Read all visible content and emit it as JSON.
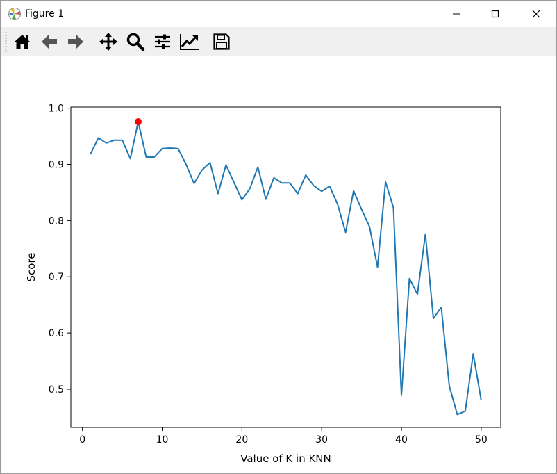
{
  "window": {
    "title": "Figure 1",
    "icons": {
      "app": "matplotlib-icon",
      "minimize": "minimize-icon",
      "maximize": "maximize-icon",
      "close": "close-icon"
    }
  },
  "toolbar": {
    "tools": [
      {
        "name": "home",
        "icon": "home-icon"
      },
      {
        "name": "back",
        "icon": "arrow-left-icon"
      },
      {
        "name": "forward",
        "icon": "arrow-right-icon"
      },
      {
        "name": "pan",
        "icon": "move-icon"
      },
      {
        "name": "zoom",
        "icon": "magnifier-icon"
      },
      {
        "name": "configure-subplots",
        "icon": "sliders-icon"
      },
      {
        "name": "edit-axis",
        "icon": "line-chart-icon"
      },
      {
        "name": "save",
        "icon": "floppy-disk-icon"
      }
    ]
  },
  "chart_data": {
    "type": "line",
    "title": "",
    "xlabel": "Value of K in KNN",
    "ylabel": "Score",
    "xlim": [
      -1.45,
      52.45
    ],
    "ylim": [
      0.432,
      1.002
    ],
    "xticks": [
      0,
      10,
      20,
      30,
      40,
      50
    ],
    "yticks": [
      0.5,
      0.6,
      0.7,
      0.8,
      0.9,
      1.0
    ],
    "xtick_labels": [
      "0",
      "10",
      "20",
      "30",
      "40",
      "50"
    ],
    "ytick_labels": [
      "0.5",
      "0.6",
      "0.7",
      "0.8",
      "0.9",
      "1.0"
    ],
    "grid": false,
    "series": [
      {
        "color": "#1f77b4",
        "x": [
          1,
          2,
          3,
          4,
          5,
          6,
          7,
          8,
          9,
          10,
          11,
          12,
          13,
          14,
          15,
          16,
          17,
          18,
          19,
          20,
          21,
          22,
          23,
          24,
          25,
          26,
          27,
          28,
          29,
          30,
          31,
          32,
          33,
          34,
          35,
          36,
          37,
          38,
          39,
          40,
          41,
          42,
          43,
          44,
          45,
          46,
          47,
          48,
          49,
          50
        ],
        "y": [
          0.918,
          0.947,
          0.938,
          0.943,
          0.943,
          0.91,
          0.976,
          0.913,
          0.913,
          0.928,
          0.929,
          0.928,
          0.9,
          0.866,
          0.89,
          0.903,
          0.848,
          0.899,
          0.868,
          0.837,
          0.857,
          0.895,
          0.838,
          0.876,
          0.867,
          0.867,
          0.848,
          0.881,
          0.862,
          0.852,
          0.861,
          0.829,
          0.779,
          0.853,
          0.82,
          0.789,
          0.717,
          0.869,
          0.823,
          0.489,
          0.697,
          0.669,
          0.776,
          0.626,
          0.646,
          0.506,
          0.455,
          0.461,
          0.563,
          0.48
        ]
      }
    ],
    "highlight_point": {
      "x": 7,
      "y": 0.976,
      "color": "#ff0000"
    }
  }
}
